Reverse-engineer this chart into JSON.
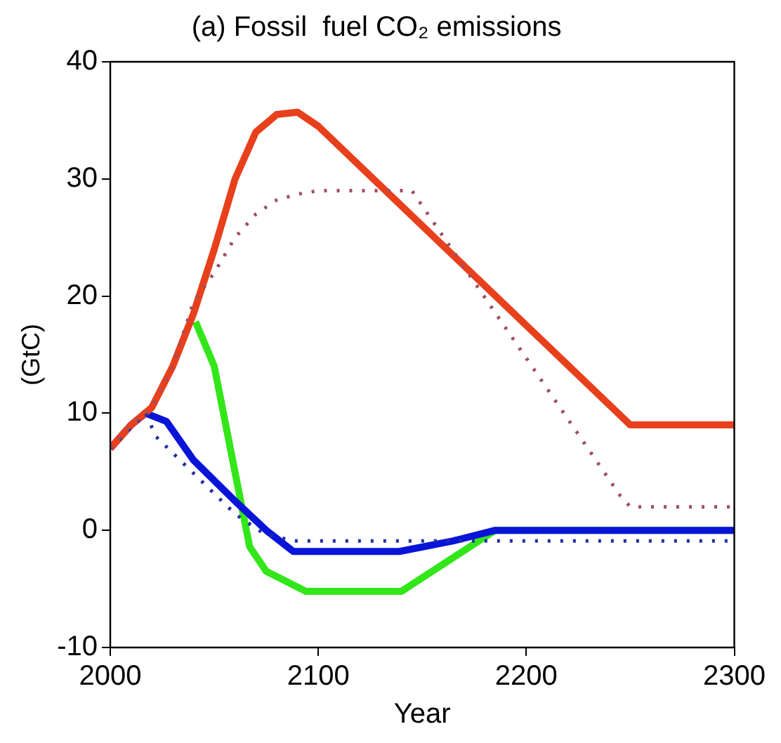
{
  "chart_data": {
    "type": "line",
    "title": "(a) Fossil  fuel CO₂ emissions",
    "xlabel": "Year",
    "ylabel": "(GtC)",
    "xlim": [
      2000,
      2300
    ],
    "ylim": [
      -10,
      40
    ],
    "xticks": [
      2000,
      2100,
      2200,
      2300
    ],
    "yticks": [
      -10,
      0,
      10,
      20,
      30,
      40
    ],
    "grid": false,
    "legend": false,
    "marker": "none",
    "series": [
      {
        "color": "#a05060",
        "line_style": "dotted",
        "x": [
          2000,
          2010,
          2020,
          2030,
          2040,
          2050,
          2060,
          2070,
          2080,
          2090,
          2100,
          2120,
          2145,
          2200,
          2245,
          2250,
          2300
        ],
        "values": [
          7,
          9,
          10.5,
          14,
          19.5,
          22,
          25,
          27,
          28.2,
          28.7,
          29,
          29,
          29,
          14.7,
          3,
          2,
          2
        ]
      },
      {
        "color": "#2030a0",
        "line_style": "dotted",
        "x": [
          2000,
          2017,
          2022,
          2060,
          2074,
          2088,
          2300
        ],
        "values": [
          7,
          10,
          8,
          1.4,
          -0.3,
          -0.9,
          -0.9
        ]
      },
      {
        "color": "#e8401c",
        "line_style": "solid",
        "x": [
          2000,
          2010,
          2020,
          2030,
          2040,
          2050,
          2060,
          2070,
          2080,
          2090,
          2100,
          2250,
          2300
        ],
        "values": [
          7,
          9,
          10.5,
          14,
          18.5,
          24,
          30,
          34,
          35.5,
          35.7,
          34.5,
          9,
          9
        ]
      },
      {
        "color": "#0a14d8",
        "line_style": "solid",
        "x": [
          2000,
          2010,
          2017,
          2027,
          2040,
          2060,
          2075,
          2088,
          2139,
          2165,
          2185,
          2300
        ],
        "values": [
          7,
          9,
          10,
          9.3,
          6,
          2.5,
          0,
          -1.8,
          -1.8,
          -0.9,
          0,
          0
        ]
      },
      {
        "color": "#33e61a",
        "line_style": "solid",
        "x": [
          2041,
          2050,
          2067,
          2075,
          2094,
          2140,
          2185,
          2300
        ],
        "values": [
          17.8,
          14,
          -1.4,
          -3.5,
          -5.2,
          -5.2,
          0,
          0
        ]
      }
    ]
  }
}
